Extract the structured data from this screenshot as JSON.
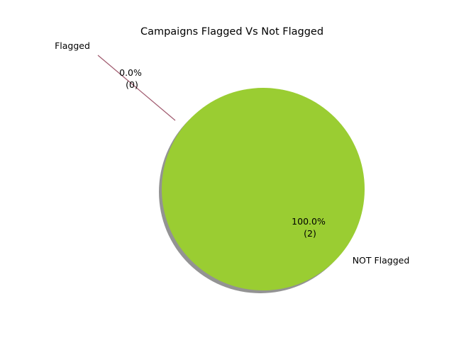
{
  "chart_data": {
    "type": "pie",
    "title": "Campaigns Flagged Vs Not Flagged",
    "slices": [
      {
        "label": "Flagged",
        "value": 0,
        "percent_label": "0.0%",
        "count_label": "(0)",
        "color": "#a05a6e",
        "exploded": true
      },
      {
        "label": "NOT Flagged",
        "value": 2,
        "percent_label": "100.0%",
        "count_label": "(2)",
        "color": "#9acd32",
        "exploded": false
      }
    ],
    "shadow": true,
    "shadow_color": "#808080",
    "edge_color": "#6b6b2e"
  }
}
